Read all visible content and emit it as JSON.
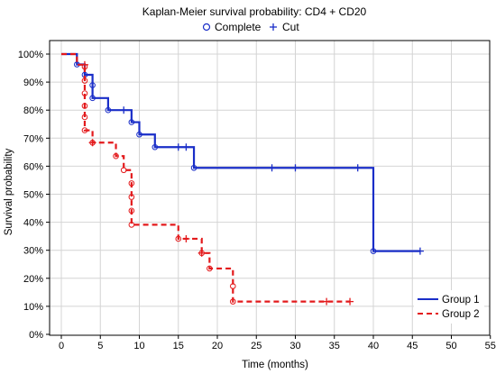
{
  "chart_data": {
    "type": "line",
    "title": "Kaplan-Meier survival probability: CD4 + CD20",
    "xlabel": "Time (months)",
    "ylabel": "Survival probability",
    "xlim": [
      0,
      55
    ],
    "ylim": [
      0,
      1
    ],
    "x_ticks": [
      0,
      5,
      10,
      15,
      20,
      25,
      30,
      35,
      40,
      45,
      50,
      55
    ],
    "y_ticks": [
      "0%",
      "10%",
      "20%",
      "30%",
      "40%",
      "50%",
      "60%",
      "70%",
      "80%",
      "90%",
      "100%"
    ],
    "grid": true,
    "marker_legend": {
      "position": "top-center",
      "complete_label": "Complete",
      "cut_label": "Cut"
    },
    "legend": {
      "position": "bottom-right"
    },
    "series": [
      {
        "name": "Group 1",
        "color": "#1a2ec8",
        "line_style": "solid",
        "steps": [
          [
            0,
            1.0
          ],
          [
            2,
            0.963
          ],
          [
            3,
            0.926
          ],
          [
            4,
            0.889
          ],
          [
            4,
            0.843
          ],
          [
            6,
            0.8
          ],
          [
            9,
            0.757
          ],
          [
            10,
            0.713
          ],
          [
            12,
            0.668
          ],
          [
            17,
            0.594
          ],
          [
            40,
            0.297
          ],
          [
            46,
            0.297
          ]
        ],
        "complete": [
          [
            2,
            0.963
          ],
          [
            3,
            0.926
          ],
          [
            4,
            0.889
          ],
          [
            4,
            0.843
          ],
          [
            6,
            0.8
          ],
          [
            9,
            0.757
          ],
          [
            10,
            0.713
          ],
          [
            12,
            0.668
          ],
          [
            17,
            0.594
          ],
          [
            40,
            0.297
          ]
        ],
        "cut": [
          [
            8,
            0.8
          ],
          [
            15,
            0.668
          ],
          [
            16,
            0.668
          ],
          [
            27,
            0.594
          ],
          [
            30,
            0.594
          ],
          [
            38,
            0.594
          ],
          [
            46,
            0.297
          ]
        ]
      },
      {
        "name": "Group 2",
        "color": "#e31a1c",
        "line_style": "dashed",
        "steps": [
          [
            0,
            1.0
          ],
          [
            2,
            0.962
          ],
          [
            3,
            0.955
          ],
          [
            3,
            0.905
          ],
          [
            3,
            0.86
          ],
          [
            3,
            0.815
          ],
          [
            3,
            0.775
          ],
          [
            3,
            0.728
          ],
          [
            4,
            0.684
          ],
          [
            7,
            0.636
          ],
          [
            8,
            0.586
          ],
          [
            9,
            0.539
          ],
          [
            9,
            0.49
          ],
          [
            9,
            0.441
          ],
          [
            9,
            0.391
          ],
          [
            15,
            0.341
          ],
          [
            18,
            0.29
          ],
          [
            19,
            0.235
          ],
          [
            22,
            0.172
          ],
          [
            22,
            0.117
          ],
          [
            37,
            0.117
          ]
        ],
        "complete": [
          [
            3,
            0.955
          ],
          [
            3,
            0.905
          ],
          [
            3,
            0.86
          ],
          [
            3,
            0.815
          ],
          [
            3,
            0.775
          ],
          [
            3,
            0.728
          ],
          [
            4,
            0.684
          ],
          [
            7,
            0.636
          ],
          [
            8,
            0.586
          ],
          [
            9,
            0.539
          ],
          [
            9,
            0.49
          ],
          [
            9,
            0.441
          ],
          [
            9,
            0.391
          ],
          [
            15,
            0.341
          ],
          [
            18,
            0.29
          ],
          [
            19,
            0.235
          ],
          [
            22,
            0.172
          ],
          [
            22,
            0.117
          ]
        ],
        "cut": [
          [
            3,
            0.962
          ],
          [
            4,
            0.684
          ],
          [
            16,
            0.341
          ],
          [
            18,
            0.29
          ],
          [
            34,
            0.117
          ],
          [
            37,
            0.117
          ]
        ]
      }
    ]
  }
}
